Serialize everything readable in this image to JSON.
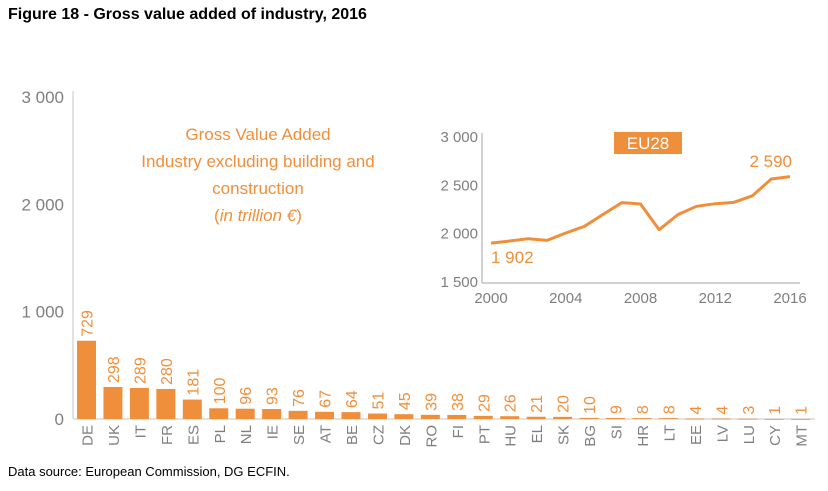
{
  "title": "Figure 18 - Gross value added of industry, 2016",
  "source": "Data source: European Commission, DG ECFIN.",
  "colors": {
    "bar": "#ef8f3b",
    "axis_text": "#7f7f7f",
    "axis_line": "#d9d9d9"
  },
  "chart_data": [
    {
      "type": "bar",
      "annotation": [
        "Gross Value Added",
        "Industry excluding building and",
        "construction",
        "(in trillion €)"
      ],
      "categories": [
        "DE",
        "UK",
        "IT",
        "FR",
        "ES",
        "PL",
        "NL",
        "IE",
        "SE",
        "AT",
        "BE",
        "CZ",
        "DK",
        "RO",
        "FI",
        "PT",
        "HU",
        "EL",
        "SK",
        "BG",
        "SI",
        "HR",
        "LT",
        "EE",
        "LV",
        "LU",
        "CY",
        "MT"
      ],
      "values": [
        729,
        298,
        289,
        280,
        181,
        100,
        96,
        93,
        76,
        67,
        64,
        51,
        45,
        39,
        38,
        29,
        26,
        21,
        20,
        10,
        9,
        8,
        8,
        4,
        4,
        3,
        1,
        1
      ],
      "ylim": [
        0,
        3000
      ],
      "yticks": [
        0,
        1000,
        2000,
        3000
      ],
      "ytick_labels": [
        "0",
        "1 000",
        "2 000",
        "3 000"
      ],
      "grid": false
    },
    {
      "type": "line",
      "title": "EU28",
      "x": [
        2000,
        2001,
        2002,
        2003,
        2004,
        2005,
        2006,
        2007,
        2008,
        2009,
        2010,
        2011,
        2012,
        2013,
        2014,
        2015,
        2016
      ],
      "values": [
        1902,
        1924,
        1948,
        1931,
        2007,
        2076,
        2200,
        2321,
        2307,
        2041,
        2197,
        2283,
        2310,
        2324,
        2393,
        2566,
        2590
      ],
      "xlim": [
        2000,
        2016
      ],
      "ylim": [
        1500,
        3000
      ],
      "xticks": [
        2000,
        2004,
        2008,
        2012,
        2016
      ],
      "xtick_labels": [
        "2000",
        "2004",
        "2008",
        "2012",
        "2016"
      ],
      "yticks": [
        1500,
        2000,
        2500,
        3000
      ],
      "ytick_labels": [
        "1 500",
        "2 000",
        "2 500",
        "3 000"
      ],
      "point_labels": [
        {
          "x": 2000,
          "label": "1 902"
        },
        {
          "x": 2016,
          "label": "2 590"
        }
      ],
      "grid": false
    }
  ]
}
